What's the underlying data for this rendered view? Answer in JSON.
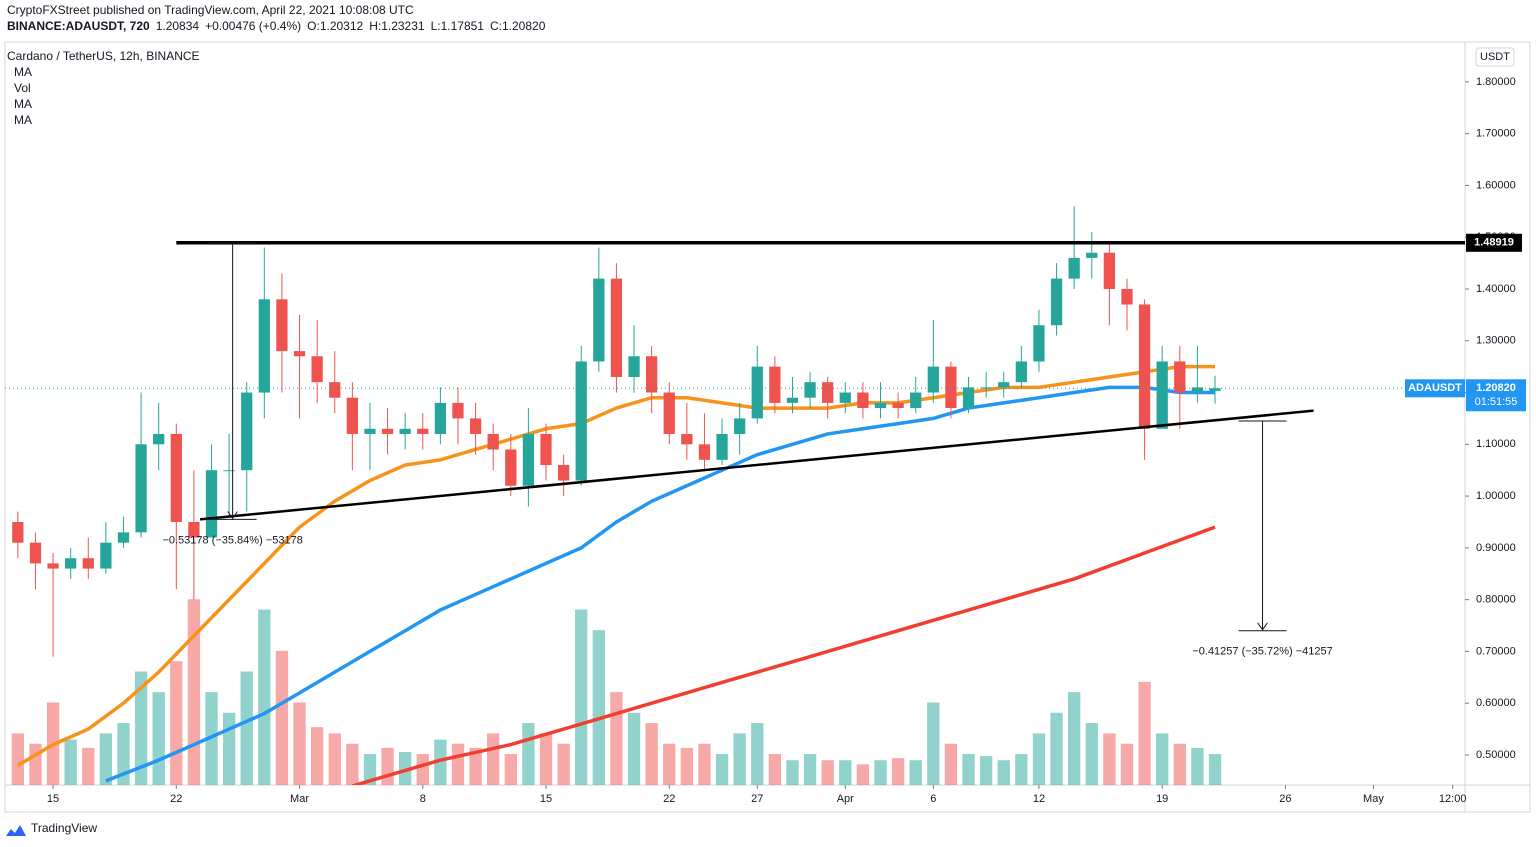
{
  "header": {
    "publisher": "CryptoFXStreet published on TradingView.com, April 22, 2021 10:08:08 UTC",
    "ticker": [
      "BINANCE:ADAUSDT, 720",
      "1.20834",
      "+0.00476 (+0.4%)",
      "O:1.20312",
      "H:1.23231",
      "L:1.17851",
      "C:1.20820"
    ]
  },
  "footer": {
    "brand": "TradingView"
  },
  "chart_data": {
    "type": "candlestick",
    "title": "Cardano / TetherUS, 12h, BINANCE",
    "up_color": "#26a69a",
    "down_color": "#ef5350",
    "open": [
      0.95,
      0.91,
      0.87,
      0.86,
      0.88,
      0.86,
      0.91,
      0.93,
      1.1,
      1.12,
      0.95,
      0.92,
      1.05,
      1.05,
      1.2,
      1.38,
      1.28,
      1.27,
      1.22,
      1.19,
      1.12,
      1.13,
      1.12,
      1.13,
      1.12,
      1.18,
      1.15,
      1.12,
      1.09,
      1.02,
      1.12,
      1.06,
      1.03,
      1.26,
      1.42,
      1.23,
      1.27,
      1.2,
      1.12,
      1.1,
      1.07,
      1.12,
      1.15,
      1.25,
      1.18,
      1.19,
      1.22,
      1.18,
      1.2,
      1.17,
      1.18,
      1.17,
      1.2,
      1.25,
      1.17,
      1.21,
      1.21,
      1.22,
      1.26,
      1.33,
      1.42,
      1.46,
      1.47,
      1.4,
      1.37,
      1.13,
      1.26,
      1.2,
      1.20312
    ],
    "high": [
      0.97,
      0.93,
      0.89,
      0.9,
      0.92,
      0.95,
      0.96,
      1.2,
      1.18,
      1.14,
      1.05,
      1.1,
      1.12,
      1.22,
      1.48,
      1.43,
      1.35,
      1.34,
      1.28,
      1.22,
      1.18,
      1.17,
      1.16,
      1.16,
      1.21,
      1.21,
      1.18,
      1.14,
      1.12,
      1.17,
      1.14,
      1.08,
      1.29,
      1.48,
      1.45,
      1.33,
      1.29,
      1.22,
      1.18,
      1.16,
      1.15,
      1.18,
      1.29,
      1.27,
      1.23,
      1.24,
      1.23,
      1.22,
      1.22,
      1.22,
      1.2,
      1.23,
      1.34,
      1.26,
      1.23,
      1.24,
      1.24,
      1.29,
      1.36,
      1.45,
      1.56,
      1.51,
      1.49,
      1.42,
      1.38,
      1.29,
      1.29,
      1.29,
      1.23231
    ],
    "low": [
      0.88,
      0.82,
      0.69,
      0.84,
      0.84,
      0.85,
      0.9,
      0.92,
      1.05,
      0.82,
      0.8,
      0.93,
      0.96,
      0.97,
      1.15,
      1.2,
      1.15,
      1.18,
      1.16,
      1.05,
      1.05,
      1.08,
      1.09,
      1.09,
      1.1,
      1.1,
      1.08,
      1.05,
      1.0,
      0.98,
      1.03,
      1.0,
      1.02,
      1.24,
      1.2,
      1.2,
      1.16,
      1.1,
      1.07,
      1.05,
      1.06,
      1.08,
      1.14,
      1.16,
      1.16,
      1.17,
      1.15,
      1.16,
      1.15,
      1.15,
      1.15,
      1.16,
      1.18,
      1.15,
      1.16,
      1.19,
      1.19,
      1.21,
      1.24,
      1.31,
      1.4,
      1.42,
      1.33,
      1.32,
      1.07,
      1.13,
      1.13,
      1.18,
      1.17851
    ],
    "close": [
      0.91,
      0.87,
      0.86,
      0.88,
      0.86,
      0.91,
      0.93,
      1.1,
      1.12,
      0.95,
      0.92,
      1.05,
      1.05,
      1.2,
      1.38,
      1.28,
      1.27,
      1.22,
      1.19,
      1.12,
      1.13,
      1.12,
      1.13,
      1.12,
      1.18,
      1.15,
      1.12,
      1.09,
      1.02,
      1.12,
      1.06,
      1.03,
      1.26,
      1.42,
      1.23,
      1.27,
      1.2,
      1.12,
      1.1,
      1.07,
      1.12,
      1.15,
      1.25,
      1.18,
      1.19,
      1.22,
      1.18,
      1.2,
      1.17,
      1.18,
      1.17,
      1.2,
      1.25,
      1.17,
      1.21,
      1.21,
      1.22,
      1.26,
      1.33,
      1.42,
      1.46,
      1.47,
      1.4,
      1.37,
      1.13,
      1.26,
      1.2,
      1.21,
      1.2082
    ],
    "indicators": [
      {
        "name": "MA",
        "kind": "line",
        "color": "#f7931a",
        "x": [
          0,
          2,
          4,
          6,
          8,
          10,
          12,
          14,
          16,
          18,
          20,
          22,
          24,
          26,
          28,
          30,
          32,
          34,
          36,
          38,
          40,
          42,
          44,
          46,
          48,
          50,
          52,
          54,
          56,
          58,
          60,
          62,
          64,
          66,
          68
        ],
        "values": [
          0.48,
          0.52,
          0.55,
          0.6,
          0.66,
          0.73,
          0.8,
          0.87,
          0.94,
          0.99,
          1.03,
          1.06,
          1.07,
          1.09,
          1.11,
          1.13,
          1.14,
          1.17,
          1.19,
          1.19,
          1.18,
          1.17,
          1.17,
          1.17,
          1.18,
          1.18,
          1.19,
          1.2,
          1.21,
          1.21,
          1.22,
          1.23,
          1.24,
          1.25,
          1.25
        ]
      },
      {
        "name": "Vol",
        "kind": "volume",
        "ylim": [
          0,
          360
        ],
        "values": [
          25,
          20,
          40,
          22,
          18,
          25,
          30,
          55,
          45,
          60,
          90,
          45,
          35,
          55,
          85,
          65,
          40,
          28,
          25,
          20,
          15,
          18,
          16,
          15,
          22,
          20,
          18,
          25,
          15,
          30,
          25,
          20,
          85,
          75,
          45,
          35,
          30,
          20,
          18,
          20,
          15,
          25,
          30,
          15,
          12,
          15,
          12,
          12,
          10,
          12,
          13,
          12,
          40,
          20,
          15,
          14,
          12,
          15,
          25,
          35,
          45,
          30,
          25,
          20,
          50,
          25,
          20,
          18,
          15
        ]
      },
      {
        "name": "MA",
        "kind": "line",
        "color": "#2196f3",
        "x": [
          5,
          8,
          10,
          12,
          14,
          16,
          18,
          20,
          22,
          24,
          26,
          28,
          30,
          32,
          34,
          36,
          38,
          40,
          42,
          44,
          46,
          48,
          50,
          52,
          54,
          56,
          58,
          60,
          62,
          64,
          66,
          68
        ],
        "values": [
          0.45,
          0.49,
          0.52,
          0.55,
          0.58,
          0.62,
          0.66,
          0.7,
          0.74,
          0.78,
          0.81,
          0.84,
          0.87,
          0.9,
          0.95,
          0.99,
          1.02,
          1.05,
          1.08,
          1.1,
          1.12,
          1.13,
          1.14,
          1.15,
          1.17,
          1.18,
          1.19,
          1.2,
          1.21,
          1.21,
          1.2,
          1.2
        ]
      },
      {
        "name": "MA",
        "kind": "line",
        "color": "#f23d30",
        "x": [
          19,
          20,
          24,
          28,
          32,
          36,
          40,
          44,
          48,
          52,
          56,
          60,
          64,
          68
        ],
        "values": [
          0.44,
          0.45,
          0.49,
          0.52,
          0.56,
          0.6,
          0.64,
          0.68,
          0.72,
          0.76,
          0.8,
          0.84,
          0.89,
          0.94
        ]
      }
    ],
    "xlim": [
      -0.73,
      82.2
    ],
    "xticks": [
      {
        "value": 2,
        "label": "15"
      },
      {
        "value": 9,
        "label": "22"
      },
      {
        "value": 16,
        "label": "Mar"
      },
      {
        "value": 23,
        "label": "8"
      },
      {
        "value": 30,
        "label": "15"
      },
      {
        "value": 37,
        "label": "22"
      },
      {
        "value": 42,
        "label": "27"
      },
      {
        "value": 47,
        "label": "Apr"
      },
      {
        "value": 52,
        "label": "6"
      },
      {
        "value": 58,
        "label": "12"
      },
      {
        "value": 65,
        "label": "19"
      },
      {
        "value": 72,
        "label": "26"
      },
      {
        "value": 77,
        "label": "May"
      },
      {
        "value": 81.5,
        "label": "12:00"
      }
    ],
    "ylim": [
      0.442,
      1.877
    ],
    "yticks": [
      {
        "value": 0.5,
        "label": "0.50000"
      },
      {
        "value": 0.6,
        "label": "0.60000"
      },
      {
        "value": 0.7,
        "label": "0.70000"
      },
      {
        "value": 0.8,
        "label": "0.80000"
      },
      {
        "value": 0.9,
        "label": "0.90000"
      },
      {
        "value": 1.0,
        "label": "1.00000"
      },
      {
        "value": 1.1,
        "label": "1.10000"
      },
      {
        "value": 1.2,
        "label": "1.20000"
      },
      {
        "value": 1.3,
        "label": "1.30000"
      },
      {
        "value": 1.4,
        "label": "1.40000"
      },
      {
        "value": 1.5,
        "label": "1.50000"
      },
      {
        "value": 1.6,
        "label": "1.60000"
      },
      {
        "value": 1.7,
        "label": "1.70000"
      },
      {
        "value": 1.8,
        "label": "1.80000"
      }
    ],
    "currency": "USDT",
    "symbol": "ADAUSDT",
    "last_price": {
      "value": 1.2082,
      "label": "1.20820"
    },
    "countdown": "01:51:55",
    "resistance": {
      "value": 1.48919,
      "label": "1.48919",
      "x_start": 9
    },
    "trendline": {
      "x": [
        10.35,
        73.6
      ],
      "values": [
        0.955,
        1.165
      ]
    },
    "measures": [
      {
        "x": 12.2,
        "from": 1.48919,
        "to": 0.955,
        "label": "−0.53178 (−35.84%) −53178"
      },
      {
        "x": 70.7,
        "from": 1.145,
        "to": 0.74,
        "label": "−0.41257 (−35.72%) −41257"
      }
    ]
  }
}
